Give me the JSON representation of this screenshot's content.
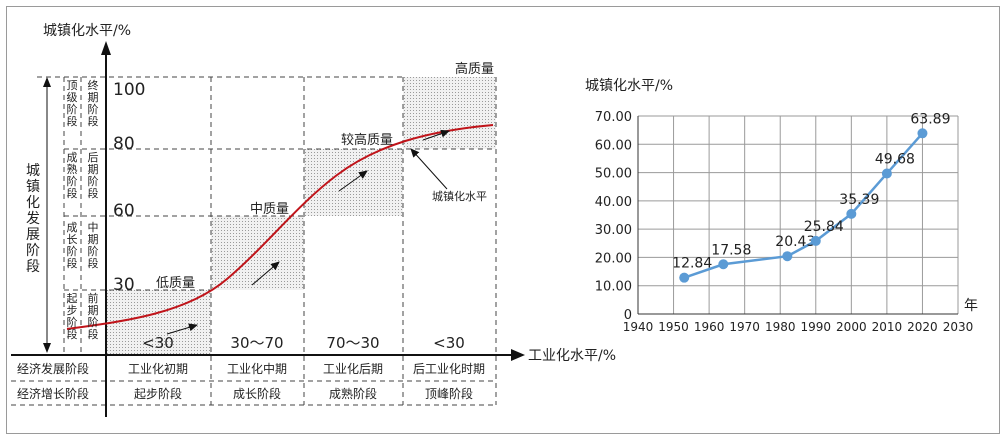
{
  "left": {
    "y_title": "城镇化水平/%",
    "x_title": "工业化水平/%",
    "side_title": "城镇化发展阶段",
    "left_stages": [
      "顶级阶段",
      "成熟阶段",
      "成长阶段",
      "起步阶段"
    ],
    "right_stages": [
      "终期阶段",
      "后期阶段",
      "中期阶段",
      "前期阶段"
    ],
    "y_ticks": [
      "100",
      "80",
      "60",
      "30"
    ],
    "bottom_values": [
      "<30",
      "30～70",
      "70～30",
      "<30"
    ],
    "quality_labels": [
      "低质量",
      "中质量",
      "较高质量",
      "高质量"
    ],
    "curve_label": "城镇化水平",
    "row1_header": "经济发展阶段",
    "row1": [
      "工业化初期",
      "工业化中期",
      "工业化后期",
      "后工业化时期"
    ],
    "row2_header": "经济增长阶段",
    "row2": [
      "起步阶段",
      "成长阶段",
      "成熟阶段",
      "顶峰阶段"
    ]
  },
  "chart_data": {
    "type": "line",
    "ylabel": "城镇化水平/%",
    "xlabel": "年",
    "x": [
      1953,
      1964,
      1982,
      1990,
      2000,
      2010,
      2020
    ],
    "values": [
      12.84,
      17.58,
      20.43,
      25.84,
      35.39,
      49.68,
      63.89
    ],
    "data_labels": [
      "12.84",
      "17.58",
      "20.43",
      "25.84",
      "35.39",
      "49.68",
      "63.89"
    ],
    "xlim": [
      1940,
      2030
    ],
    "ylim": [
      0,
      70
    ],
    "x_ticks": [
      "1940",
      "1950",
      "1960",
      "1970",
      "1980",
      "1990",
      "2000",
      "2010",
      "2020",
      "2030"
    ],
    "y_ticks": [
      "0",
      "10.00",
      "20.00",
      "30.00",
      "40.00",
      "50.00",
      "60.00",
      "70.00"
    ],
    "grid": true,
    "line_color": "#5b9bd5",
    "marker_color": "#5b9bd5"
  }
}
